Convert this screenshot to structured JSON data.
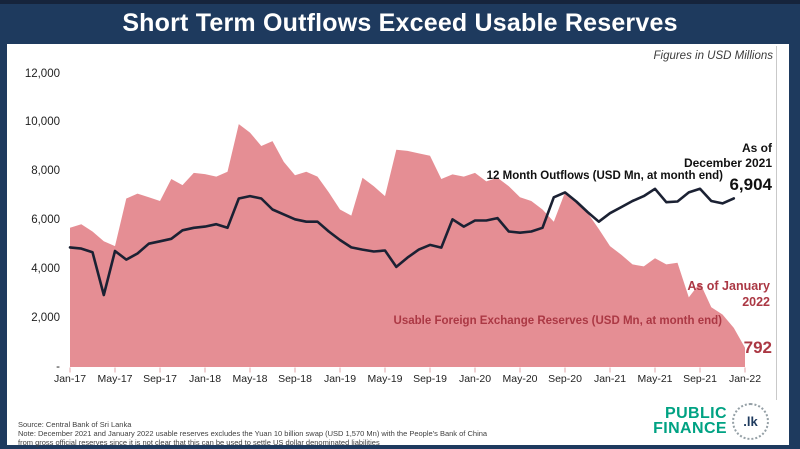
{
  "title": "Short Term Outflows Exceed Usable Reserves",
  "units_note": "Figures in USD Millions",
  "colors": {
    "frame_navy": "#1e3a5e",
    "reserves_area_pink": "#e58e94",
    "outflows_line_black": "#1b2133",
    "reserves_text_red": "#ab3844",
    "logo_teal": "#00a283"
  },
  "chart_data": {
    "type": "area",
    "title": "Short Term Outflows Exceed Usable Reserves",
    "units": "USD Millions",
    "x": [
      "Jan-17",
      "Feb-17",
      "Mar-17",
      "Apr-17",
      "May-17",
      "Jun-17",
      "Jul-17",
      "Aug-17",
      "Sep-17",
      "Oct-17",
      "Nov-17",
      "Dec-17",
      "Jan-18",
      "Feb-18",
      "Mar-18",
      "Apr-18",
      "May-18",
      "Jun-18",
      "Jul-18",
      "Aug-18",
      "Sep-18",
      "Oct-18",
      "Nov-18",
      "Dec-18",
      "Jan-19",
      "Feb-19",
      "Mar-19",
      "Apr-19",
      "May-19",
      "Jun-19",
      "Jul-19",
      "Aug-19",
      "Sep-19",
      "Oct-19",
      "Nov-19",
      "Dec-19",
      "Jan-20",
      "Feb-20",
      "Mar-20",
      "Apr-20",
      "May-20",
      "Jun-20",
      "Jul-20",
      "Aug-20",
      "Sep-20",
      "Oct-20",
      "Nov-20",
      "Dec-20",
      "Jan-21",
      "Feb-21",
      "Mar-21",
      "Apr-21",
      "May-21",
      "Jun-21",
      "Jul-21",
      "Aug-21",
      "Sep-21",
      "Oct-21",
      "Nov-21",
      "Dec-21",
      "Jan-22"
    ],
    "x_tick_labels": [
      "Jan-17",
      "May-17",
      "Sep-17",
      "Jan-18",
      "May-18",
      "Sep-18",
      "Jan-19",
      "May-19",
      "Sep-19",
      "Jan-20",
      "May-20",
      "Sep-20",
      "Jan-21",
      "May-21",
      "Sep-21",
      "Jan-22"
    ],
    "y_tick_labels": [
      "12,000",
      "10,000",
      "8,000",
      "6,000",
      "4,000",
      "2,000",
      "-"
    ],
    "y_tick_values": [
      12000,
      10000,
      8000,
      6000,
      4000,
      2000,
      0
    ],
    "ylim": [
      0,
      12000
    ],
    "grid": false,
    "legend_position": "inline-annotations",
    "series": [
      {
        "name": "Usable Foreign Exchange Reserves (USD Mn, at month end)",
        "type": "area",
        "color": "#e58e94",
        "values": [
          5700,
          5850,
          5550,
          5150,
          4950,
          6900,
          7100,
          6950,
          6800,
          7700,
          7450,
          7950,
          7900,
          7800,
          8000,
          9950,
          9600,
          9050,
          9250,
          8400,
          7850,
          8000,
          7800,
          7150,
          6450,
          6200,
          7750,
          7400,
          7000,
          8900,
          8850,
          8750,
          8650,
          7700,
          7890,
          7800,
          7950,
          7600,
          7750,
          7400,
          6950,
          6800,
          6450,
          5950,
          7150,
          6730,
          6320,
          5650,
          4950,
          4600,
          4200,
          4120,
          4450,
          4200,
          4270,
          2850,
          3450,
          2450,
          2150,
          1600,
          792
        ]
      },
      {
        "name": "12 Month Outflows (USD Mn, at month end)",
        "type": "line",
        "color": "#1b2133",
        "values": [
          4900,
          4850,
          4700,
          2950,
          4750,
          4400,
          4650,
          5050,
          5150,
          5250,
          5600,
          5700,
          5750,
          5850,
          5700,
          6900,
          7000,
          6900,
          6450,
          6250,
          6050,
          5950,
          5950,
          5550,
          5200,
          4900,
          4810,
          4730,
          4770,
          4100,
          4480,
          4810,
          5000,
          4890,
          6050,
          5750,
          6000,
          6000,
          6100,
          5550,
          5500,
          5550,
          5700,
          6950,
          7150,
          6780,
          6350,
          5950,
          6300,
          6550,
          6800,
          7000,
          7300,
          6750,
          6780,
          7150,
          7300,
          6800,
          6700,
          6904
        ]
      }
    ]
  },
  "annotations": {
    "outflows_asof": "As of\nDecember 2021",
    "outflows_value": "6,904",
    "reserves_asof": "As of January\n2022",
    "reserves_value": "792"
  },
  "footer": {
    "source": "Source: Central Bank of Sri Lanka",
    "note_line1": "Note: December 2021 and January 2022 usable reserves excludes the Yuan 10 billion swap (USD 1,570 Mn) with the People's Bank of China",
    "note_line2": "from gross official reserves since it is not clear that this can be used to settle US dollar denominated liabilities",
    "logo_line1": "PUBLIC",
    "logo_line2": "FINANCE",
    "logo_badge": ".lk"
  }
}
